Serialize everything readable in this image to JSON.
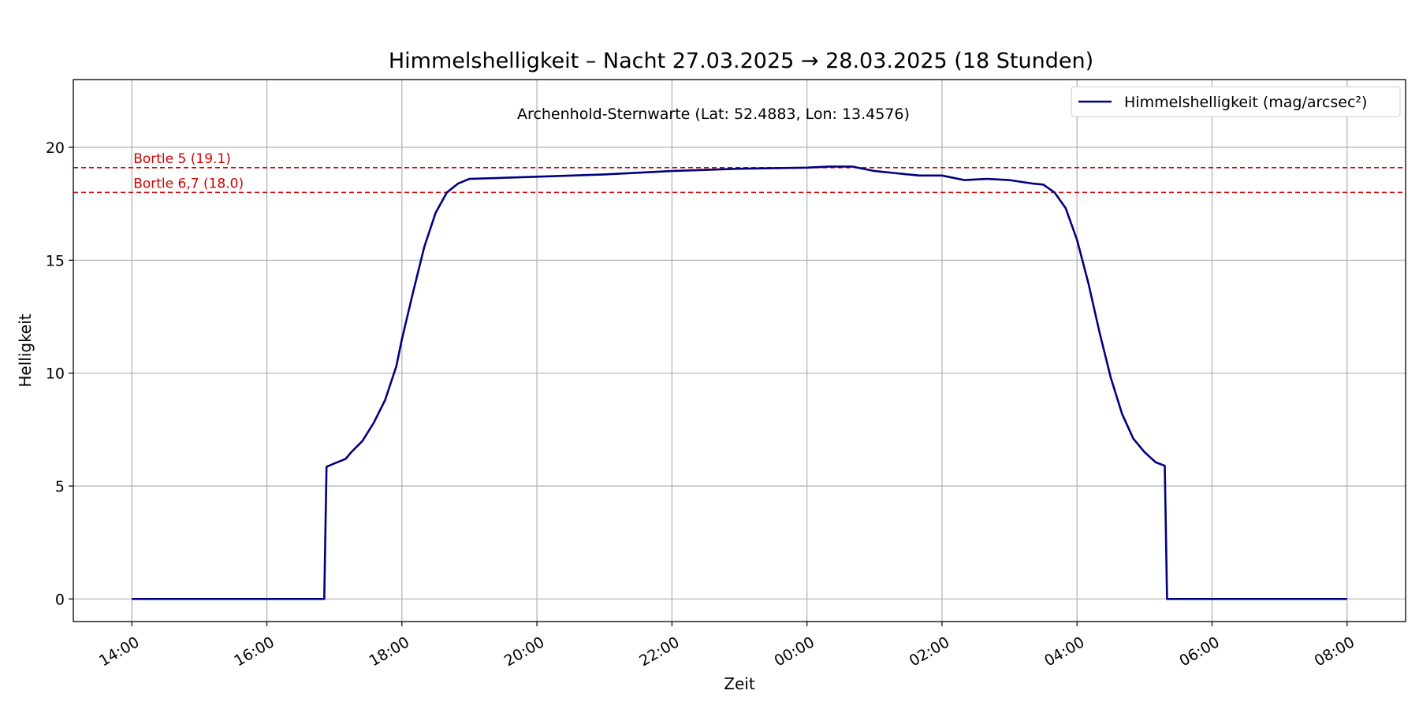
{
  "chart_data": {
    "type": "line",
    "title": "Himmelshelligkeit – Nacht 27.03.2025 → 28.03.2025 (18 Stunden)",
    "subtitle": "Archenhold-Sternwarte (Lat: 52.4883, Lon: 13.4576)",
    "xlabel": "Zeit",
    "ylabel": "Helligkeit",
    "x_axis": "time of day (hours, 27.03.2025 → 28.03.2025)",
    "xlim": [
      "13:08",
      "08:52"
    ],
    "ylim": [
      -1,
      23
    ],
    "x_ticks": [
      "14:00",
      "16:00",
      "18:00",
      "20:00",
      "22:00",
      "00:00",
      "02:00",
      "04:00",
      "06:00",
      "08:00"
    ],
    "y_ticks": [
      0,
      5,
      10,
      15,
      20
    ],
    "grid": true,
    "legend_position": "top-right",
    "series": [
      {
        "name": "Himmelshelligkeit (mag/arcsec²)",
        "color": "#000080",
        "points": [
          [
            "14:00",
            0
          ],
          [
            "15:00",
            0
          ],
          [
            "16:00",
            0
          ],
          [
            "16:51",
            0
          ],
          [
            "16:53",
            5.85
          ],
          [
            "17:00",
            6.0
          ],
          [
            "17:10",
            6.2
          ],
          [
            "17:15",
            6.5
          ],
          [
            "17:25",
            7.0
          ],
          [
            "17:35",
            7.8
          ],
          [
            "17:45",
            8.8
          ],
          [
            "17:55",
            10.3
          ],
          [
            "18:00",
            11.5
          ],
          [
            "18:10",
            13.6
          ],
          [
            "18:20",
            15.6
          ],
          [
            "18:30",
            17.1
          ],
          [
            "18:40",
            18.0
          ],
          [
            "18:50",
            18.4
          ],
          [
            "19:00",
            18.6
          ],
          [
            "19:30",
            18.65
          ],
          [
            "20:00",
            18.7
          ],
          [
            "21:00",
            18.8
          ],
          [
            "22:00",
            18.95
          ],
          [
            "23:00",
            19.05
          ],
          [
            "00:00",
            19.1
          ],
          [
            "00:20",
            19.15
          ],
          [
            "00:40",
            19.15
          ],
          [
            "01:00",
            18.95
          ],
          [
            "01:20",
            18.85
          ],
          [
            "01:40",
            18.75
          ],
          [
            "02:00",
            18.75
          ],
          [
            "02:20",
            18.55
          ],
          [
            "02:40",
            18.6
          ],
          [
            "03:00",
            18.55
          ],
          [
            "03:20",
            18.4
          ],
          [
            "03:30",
            18.35
          ],
          [
            "03:40",
            18.0
          ],
          [
            "03:50",
            17.3
          ],
          [
            "04:00",
            15.9
          ],
          [
            "04:10",
            14.0
          ],
          [
            "04:20",
            11.8
          ],
          [
            "04:30",
            9.8
          ],
          [
            "04:40",
            8.2
          ],
          [
            "04:50",
            7.1
          ],
          [
            "05:00",
            6.5
          ],
          [
            "05:10",
            6.05
          ],
          [
            "05:18",
            5.9
          ],
          [
            "05:20",
            0
          ],
          [
            "06:00",
            0
          ],
          [
            "07:00",
            0
          ],
          [
            "08:00",
            0
          ]
        ]
      }
    ],
    "reference_lines": [
      {
        "label": "Bortle 5 (19.1)",
        "value": 19.1,
        "color": "#d00000",
        "style": "dashed"
      },
      {
        "label": "Bortle 6,7 (18.0)",
        "value": 18.0,
        "color": "#d00000",
        "style": "dashed"
      }
    ]
  }
}
